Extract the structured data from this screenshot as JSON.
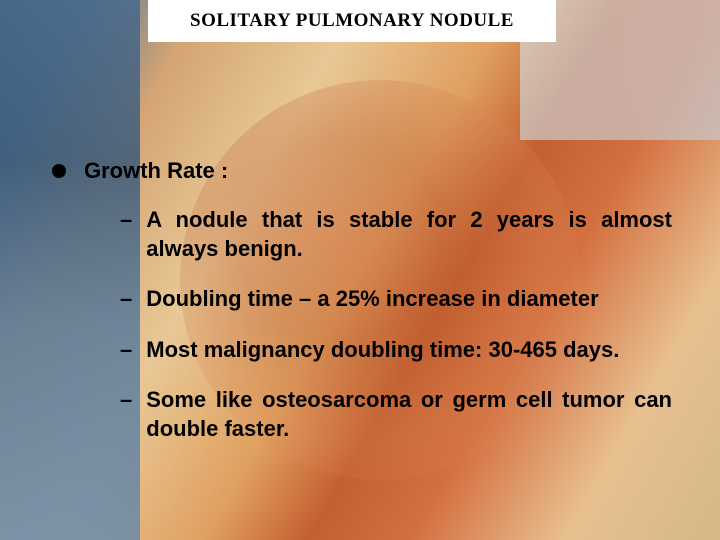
{
  "slide": {
    "title": "SOLITARY PULMONARY NODULE",
    "main_heading": "Growth Rate :",
    "sub_items": [
      "A nodule that is stable for 2 years is almost always benign.",
      "Doubling time – a 25% increase in diameter",
      "Most malignancy doubling time: 30-465 days.",
      "Some like osteosarcoma or germ cell tumor can double faster."
    ],
    "style": {
      "title_bg": "#ffffff",
      "title_fontsize": 19,
      "title_color": "#000000",
      "body_fontsize": 22,
      "body_color": "#000000",
      "bullet_color": "#000000",
      "background_gradient": [
        "#3a5a7a",
        "#d4a574",
        "#c46030",
        "#e8c090"
      ]
    }
  }
}
